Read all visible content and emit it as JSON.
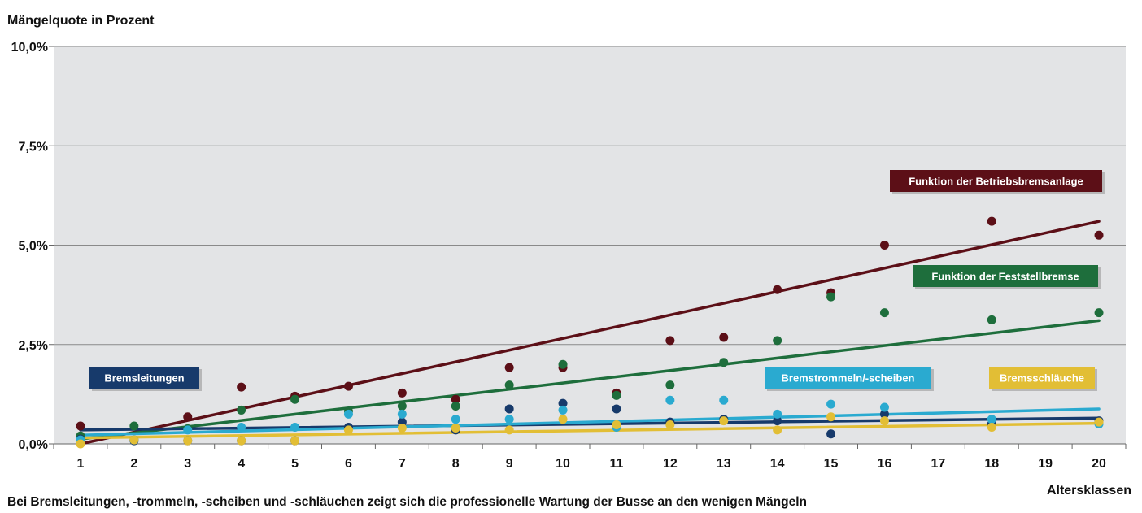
{
  "chart_data": {
    "type": "scatter",
    "title": "Mängelquote in Prozent",
    "xlabel": "Altersklassen",
    "caption": "Bei Bremsleitungen, -trommeln, -scheiben und -schläuchen zeigt sich die professionelle Wartung der Busse an den wenigen Mängeln",
    "x_categories": [
      "1",
      "2",
      "3",
      "4",
      "5",
      "6",
      "7",
      "8",
      "9",
      "10",
      "11",
      "12",
      "13",
      "14",
      "15",
      "16",
      "17",
      "18",
      "19",
      "20"
    ],
    "y_ticks": [
      "0,0%",
      "2,5%",
      "5,0%",
      "7,5%",
      "10,0%"
    ],
    "ylim": [
      0,
      10
    ],
    "grid": true,
    "series": [
      {
        "name": "Funktion der Betriebsbremsanlage",
        "color": "#5c0f17",
        "points": [
          [
            1,
            0.45
          ],
          [
            2,
            0.1
          ],
          [
            3,
            0.68
          ],
          [
            4,
            1.43
          ],
          [
            5,
            1.2
          ],
          [
            6,
            1.45
          ],
          [
            7,
            1.28
          ],
          [
            8,
            1.12
          ],
          [
            9,
            1.92
          ],
          [
            10,
            1.92
          ],
          [
            11,
            1.28
          ],
          [
            12,
            2.6
          ],
          [
            13,
            2.68
          ],
          [
            14,
            3.88
          ],
          [
            15,
            3.8
          ],
          [
            16,
            5.0
          ],
          [
            18,
            5.6
          ],
          [
            20,
            5.25
          ]
        ],
        "trend": [
          [
            1,
            0.0
          ],
          [
            20,
            5.6
          ]
        ]
      },
      {
        "name": "Funktion der Feststellbremse",
        "color": "#1e6e3c",
        "points": [
          [
            1,
            0.2
          ],
          [
            2,
            0.45
          ],
          [
            3,
            0.38
          ],
          [
            4,
            0.85
          ],
          [
            5,
            1.12
          ],
          [
            6,
            0.82
          ],
          [
            7,
            0.95
          ],
          [
            8,
            0.95
          ],
          [
            9,
            1.48
          ],
          [
            10,
            2.0
          ],
          [
            11,
            1.22
          ],
          [
            12,
            1.48
          ],
          [
            13,
            2.05
          ],
          [
            14,
            2.6
          ],
          [
            15,
            3.7
          ],
          [
            16,
            3.3
          ],
          [
            18,
            3.12
          ],
          [
            20,
            3.3
          ]
        ],
        "trend": [
          [
            1,
            0.12
          ],
          [
            20,
            3.1
          ]
        ]
      },
      {
        "name": "Bremsleitungen",
        "color": "#173a6b",
        "points": [
          [
            1,
            0.12
          ],
          [
            2,
            0.08
          ],
          [
            3,
            0.08
          ],
          [
            4,
            0.08
          ],
          [
            5,
            0.08
          ],
          [
            6,
            0.42
          ],
          [
            7,
            0.55
          ],
          [
            8,
            0.35
          ],
          [
            9,
            0.88
          ],
          [
            10,
            1.02
          ],
          [
            11,
            0.88
          ],
          [
            12,
            0.55
          ],
          [
            13,
            0.62
          ],
          [
            14,
            0.58
          ],
          [
            15,
            0.25
          ],
          [
            16,
            0.75
          ],
          [
            18,
            0.5
          ],
          [
            20,
            0.58
          ]
        ],
        "trend": [
          [
            1,
            0.35
          ],
          [
            20,
            0.65
          ]
        ]
      },
      {
        "name": "Bremstrommeln/-scheiben",
        "color": "#2aaad0",
        "points": [
          [
            1,
            0.1
          ],
          [
            2,
            0.1
          ],
          [
            3,
            0.35
          ],
          [
            4,
            0.42
          ],
          [
            5,
            0.42
          ],
          [
            6,
            0.75
          ],
          [
            7,
            0.75
          ],
          [
            8,
            0.62
          ],
          [
            9,
            0.62
          ],
          [
            10,
            0.85
          ],
          [
            11,
            0.42
          ],
          [
            12,
            1.1
          ],
          [
            13,
            1.1
          ],
          [
            14,
            0.75
          ],
          [
            15,
            1.0
          ],
          [
            16,
            0.92
          ],
          [
            18,
            0.62
          ],
          [
            20,
            0.5
          ]
        ],
        "trend": [
          [
            1,
            0.22
          ],
          [
            20,
            0.88
          ]
        ]
      },
      {
        "name": "Bremsschläuche",
        "color": "#e2be35",
        "points": [
          [
            1,
            0.0
          ],
          [
            2,
            0.1
          ],
          [
            3,
            0.08
          ],
          [
            4,
            0.08
          ],
          [
            5,
            0.08
          ],
          [
            6,
            0.35
          ],
          [
            7,
            0.4
          ],
          [
            8,
            0.4
          ],
          [
            9,
            0.35
          ],
          [
            10,
            0.62
          ],
          [
            11,
            0.48
          ],
          [
            12,
            0.48
          ],
          [
            13,
            0.58
          ],
          [
            14,
            0.35
          ],
          [
            15,
            0.68
          ],
          [
            16,
            0.58
          ],
          [
            18,
            0.42
          ],
          [
            20,
            0.55
          ]
        ],
        "trend": [
          [
            1,
            0.15
          ],
          [
            20,
            0.52
          ]
        ]
      }
    ],
    "legend_tags": [
      {
        "text": "Funktion der Betriebsbremsanlage",
        "color": "#5c0f17",
        "placement": "top-right"
      },
      {
        "text": "Funktion der Feststellbremse",
        "color": "#1e6e3c",
        "placement": "right"
      },
      {
        "text": "Bremsleitungen",
        "color": "#173a6b",
        "placement": "left"
      },
      {
        "text": "Bremstrommeln/-scheiben",
        "color": "#2aaad0",
        "placement": "center-right"
      },
      {
        "text": "Bremsschläuche",
        "color": "#e2be35",
        "placement": "right"
      }
    ]
  }
}
